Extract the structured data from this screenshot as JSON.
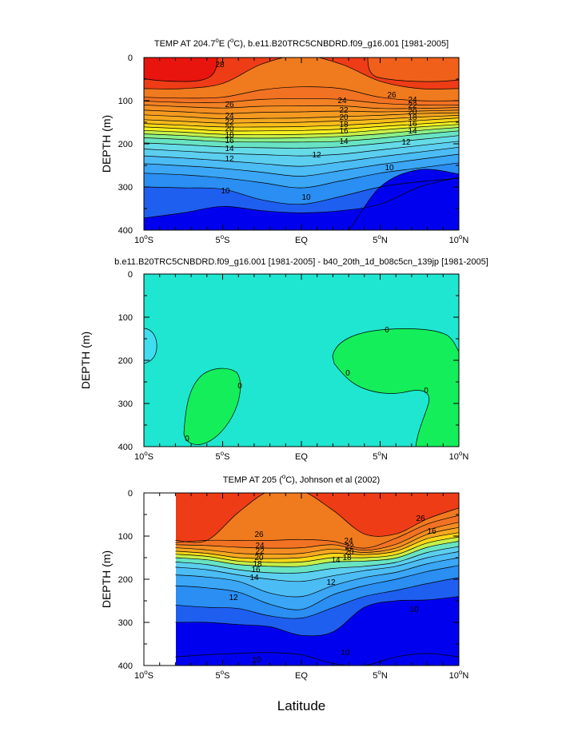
{
  "chart_data": [
    {
      "type": "contour",
      "title_main": "TEMP AT 204.7",
      "title_sup": "o",
      "title_mid": "E (",
      "title_unit_sup": "o",
      "title_rest": "C), b.e11.B20TRC5CNBDRD.f09_g16.001 [1981-2005]",
      "ylabel": "DEPTH (m)",
      "xlim": [
        -10,
        10
      ],
      "ylim": [
        400,
        0
      ],
      "yticks": [
        "0",
        "100",
        "200",
        "300",
        "400"
      ],
      "xticks": [
        {
          "num": "10",
          "sup": "o",
          "dir": "S"
        },
        {
          "num": "5",
          "sup": "o",
          "dir": "S"
        },
        {
          "num": "EQ",
          "sup": "",
          "dir": ""
        },
        {
          "num": "5",
          "sup": "o",
          "dir": "N"
        },
        {
          "num": "10",
          "sup": "o",
          "dir": "N"
        }
      ],
      "contour_labels": [
        "28",
        "26",
        "26",
        "24",
        "24",
        "24",
        "22",
        "22",
        "22",
        "20",
        "20",
        "20",
        "18",
        "18",
        "18",
        "16",
        "16",
        "16",
        "14",
        "14",
        "14",
        "12",
        "12",
        "12",
        "10",
        "10",
        "10"
      ]
    },
    {
      "type": "contour",
      "title": "b.e11.B20TRC5CNBDRD.f09_g16.001 [1981-2005] - b40_20th_1d_b08c5cn_139jp [1981-2005]",
      "ylabel": "DEPTH (m)",
      "xlim": [
        -10,
        10
      ],
      "ylim": [
        400,
        0
      ],
      "yticks": [
        "0",
        "100",
        "200",
        "300",
        "400"
      ],
      "contour_labels": [
        "0",
        "0",
        "0",
        "0",
        "0"
      ]
    },
    {
      "type": "contour",
      "title_main": "TEMP AT 205 (",
      "title_unit_sup": "o",
      "title_rest": "C), Johnson et al (2002)",
      "ylabel": "DEPTH (m)",
      "xlim": [
        -10,
        10
      ],
      "ylim": [
        400,
        0
      ],
      "yticks": [
        "0",
        "100",
        "200",
        "300",
        "400"
      ],
      "contour_labels": [
        "26",
        "26",
        "24",
        "24",
        "22",
        "22",
        "20",
        "20",
        "18",
        "18",
        "16",
        "16",
        "14",
        "14",
        "12",
        "12",
        "10",
        "10",
        "10"
      ]
    }
  ],
  "xlabel": "Latitude",
  "colors": {
    "c8": "#0000ee",
    "c9": "#1e5ff0",
    "c10": "#2a8ef2",
    "c11": "#3aa6f5",
    "c12": "#4cbcf4",
    "c13": "#5ccff0",
    "c14": "#66dbe8",
    "c15": "#68e4c4",
    "c16": "#8af08a",
    "c17": "#c6f04a",
    "c18": "#f4f020",
    "c19": "#f8d818",
    "c20": "#f8bc1c",
    "c21": "#f6a820",
    "c22": "#f49a20",
    "c23": "#f48e22",
    "c24": "#f28124",
    "c25": "#f27223",
    "c26": "#f07a1e",
    "c27": "#f0601a",
    "c28": "#ee3c16",
    "c29": "#e8140e",
    "diff_zero": "#1ee6d0",
    "diff_pos": "#14ee5a",
    "diff_neg": "#40dcf0"
  }
}
